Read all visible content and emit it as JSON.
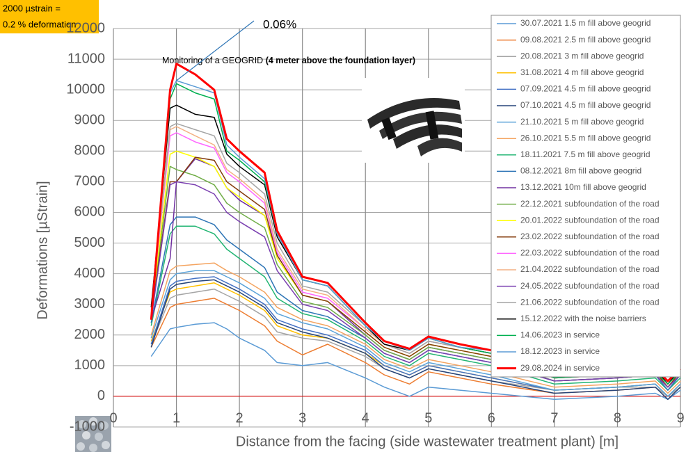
{
  "chart_data": {
    "type": "line",
    "note": [
      "2000 µstrain =",
      "0.2 % deformation"
    ],
    "title": "Monitoring of a GEOGRID",
    "title_bold": "(4 meter above the foundation layer)",
    "x_label": "Distance from the facing (side wastewater treatment plant) [m]",
    "y_label": "Deformations [µStrain]",
    "annotation": {
      "text": "0.06%",
      "x": 1,
      "y": 10300
    },
    "hline": {
      "value": 0,
      "color": "#e00000"
    },
    "xlim": [
      0,
      9
    ],
    "ylim": [
      -1000,
      12000
    ],
    "xticks": [
      0,
      1,
      2,
      3,
      4,
      5,
      6,
      7,
      8,
      9
    ],
    "yticks": [
      -1000,
      0,
      1000,
      2000,
      3000,
      4000,
      5000,
      6000,
      7000,
      8000,
      9000,
      10000,
      11000,
      12000
    ],
    "grid": true,
    "legend": "upper right",
    "x": [
      0.6,
      0.9,
      1.0,
      1.3,
      1.6,
      1.8,
      2.0,
      2.4,
      2.6,
      3.0,
      3.4,
      4.0,
      4.3,
      4.7,
      5.0,
      5.5,
      6.0,
      7.0,
      8.0,
      8.6,
      8.8,
      9.0
    ],
    "series": [
      {
        "name": "30.07.2021 1.5 m fill above geogrid",
        "color": "#5b9bd5",
        "width": 1.5,
        "values": [
          1300,
          2200,
          2250,
          2350,
          2400,
          2200,
          1900,
          1500,
          1100,
          1000,
          1100,
          600,
          300,
          0,
          300,
          200,
          100,
          -100,
          0,
          100,
          -100,
          200
        ]
      },
      {
        "name": "09.08.2021 2.5 m fill above geogrid",
        "color": "#ed7d31",
        "width": 1.5,
        "values": [
          1600,
          2900,
          3000,
          3100,
          3200,
          3000,
          2800,
          2300,
          1800,
          1350,
          1700,
          1100,
          700,
          400,
          800,
          600,
          400,
          100,
          200,
          300,
          0,
          300
        ]
      },
      {
        "name": "20.08.2021 3 m fill above geogrid",
        "color": "#a5a5a5",
        "width": 1.5,
        "values": [
          1700,
          3200,
          3300,
          3400,
          3500,
          3300,
          3100,
          2600,
          2100,
          1900,
          1800,
          1300,
          900,
          600,
          900,
          700,
          500,
          200,
          300,
          300,
          0,
          300
        ]
      },
      {
        "name": "31.08.2021 4 m fill above geogrid",
        "color": "#ffc000",
        "width": 1.5,
        "values": [
          1800,
          3400,
          3500,
          3600,
          3700,
          3500,
          3300,
          2800,
          2300,
          2000,
          1900,
          1400,
          1000,
          700,
          1000,
          800,
          600,
          200,
          300,
          400,
          0,
          400
        ]
      },
      {
        "name": "07.09.2021 4.5 m fill above geogrid",
        "color": "#4472c4",
        "width": 1.5,
        "values": [
          1700,
          3600,
          3750,
          3850,
          3900,
          3700,
          3500,
          3000,
          2500,
          2200,
          2000,
          1500,
          1000,
          700,
          1000,
          800,
          600,
          200,
          300,
          400,
          0,
          400
        ]
      },
      {
        "name": "07.10.2021 4.5 m fill above geogrid",
        "color": "#264478",
        "width": 1.5,
        "values": [
          1600,
          3500,
          3650,
          3750,
          3800,
          3600,
          3400,
          2900,
          2400,
          2100,
          1900,
          1400,
          900,
          600,
          900,
          700,
          500,
          100,
          200,
          300,
          -100,
          300
        ]
      },
      {
        "name": "21.10.2021 5 m fill above geogrid",
        "color": "#5ba3d9",
        "width": 1.5,
        "values": [
          1900,
          3800,
          4000,
          4100,
          4100,
          3900,
          3700,
          3200,
          2700,
          2400,
          2200,
          1600,
          1100,
          800,
          1100,
          900,
          700,
          200,
          300,
          400,
          0,
          400
        ]
      },
      {
        "name": "26.10.2021 5.5 m fill above geogrid",
        "color": "#f4a460",
        "width": 1.5,
        "values": [
          2000,
          4100,
          4250,
          4300,
          4350,
          4100,
          3900,
          3400,
          2900,
          2500,
          2300,
          1700,
          1200,
          900,
          1200,
          1000,
          800,
          300,
          400,
          500,
          100,
          500
        ]
      },
      {
        "name": "18.11.2021 7.5 m fill above geogrid",
        "color": "#22b573",
        "width": 1.5,
        "values": [
          2300,
          5300,
          5550,
          5550,
          5300,
          4800,
          4500,
          3900,
          3200,
          2700,
          2500,
          1800,
          1300,
          1000,
          1400,
          1200,
          1000,
          400,
          500,
          600,
          200,
          600
        ]
      },
      {
        "name": "08.12.2021 8m fill above geogrid",
        "color": "#2e75b6",
        "width": 1.5,
        "values": [
          2400,
          5600,
          5850,
          5850,
          5600,
          5100,
          4800,
          4200,
          3400,
          2800,
          2600,
          1900,
          1400,
          1100,
          1500,
          1300,
          1100,
          500,
          600,
          700,
          200,
          700
        ]
      },
      {
        "name": "13.12.2021 10m fill above geogrid",
        "color": "#7030a0",
        "width": 1.5,
        "values": [
          2500,
          4500,
          7000,
          7750,
          7500,
          6800,
          6400,
          5900,
          4600,
          3300,
          3100,
          2000,
          1500,
          1200,
          1600,
          1400,
          1200,
          500,
          600,
          700,
          300,
          700
        ]
      },
      {
        "name": "22.12.2021 subfoundation of the road",
        "color": "#70ad47",
        "width": 1.5,
        "values": [
          2600,
          7500,
          7400,
          7200,
          6900,
          6300,
          6000,
          5500,
          4300,
          3100,
          2900,
          2000,
          1500,
          1200,
          1600,
          1400,
          1200,
          500,
          600,
          700,
          300,
          700
        ]
      },
      {
        "name": "20.01.2022 subfoundation of the road",
        "color": "#ffff00",
        "width": 1.5,
        "values": [
          2700,
          7900,
          8000,
          7800,
          7500,
          6800,
          6500,
          5900,
          4500,
          3300,
          3100,
          2100,
          1600,
          1300,
          1700,
          1500,
          1300,
          600,
          700,
          800,
          300,
          800
        ]
      },
      {
        "name": "23.02.2022 subfoundation of the road",
        "color": "#843c0c",
        "width": 1.5,
        "values": [
          2600,
          7000,
          7000,
          7800,
          7700,
          7000,
          6700,
          6100,
          4600,
          3300,
          3100,
          2100,
          1600,
          1300,
          1700,
          1500,
          1300,
          600,
          700,
          800,
          300,
          800
        ]
      },
      {
        "name": "22.03.2022 subfoundation of the road",
        "color": "#ff66ff",
        "width": 1.5,
        "values": [
          2800,
          8500,
          8600,
          8300,
          8100,
          7300,
          7000,
          6300,
          4700,
          3400,
          3200,
          2200,
          1700,
          1400,
          1800,
          1600,
          1400,
          600,
          700,
          800,
          400,
          800
        ]
      },
      {
        "name": "21.04.2022 subfoundation of the road",
        "color": "#f4b183",
        "width": 1.5,
        "values": [
          2800,
          8700,
          8800,
          8500,
          8200,
          7400,
          7100,
          6400,
          4800,
          3500,
          3300,
          2200,
          1700,
          1400,
          1800,
          1600,
          1400,
          700,
          800,
          900,
          400,
          900
        ]
      },
      {
        "name": "24.05.2022 subfoundation of the road",
        "color": "#7a3fb0",
        "width": 1.5,
        "values": [
          2500,
          6900,
          7000,
          6900,
          6600,
          6000,
          5700,
          5200,
          4100,
          3000,
          2800,
          1900,
          1400,
          1100,
          1500,
          1300,
          1100,
          500,
          600,
          700,
          300,
          700
        ]
      },
      {
        "name": "21.06.2022 subfoundation of the road",
        "color": "#a5a5a5",
        "width": 1.5,
        "values": [
          2900,
          8800,
          8900,
          8700,
          8500,
          7600,
          7300,
          6600,
          5000,
          3600,
          3400,
          2300,
          1700,
          1400,
          1800,
          1600,
          1400,
          700,
          800,
          900,
          400,
          900
        ]
      },
      {
        "name": "15.12.2022 with the noise barriers",
        "color": "#000000",
        "width": 1.5,
        "values": [
          2900,
          9400,
          9500,
          9200,
          9100,
          7900,
          7500,
          6900,
          5200,
          3800,
          3600,
          2300,
          1700,
          1500,
          1900,
          1600,
          1400,
          700,
          800,
          900,
          400,
          900
        ]
      },
      {
        "name": "14.06.2023 in service",
        "color": "#00b050",
        "width": 1.5,
        "values": [
          2500,
          9700,
          10200,
          9900,
          9700,
          8000,
          7700,
          7000,
          5300,
          3800,
          3600,
          2300,
          1800,
          1500,
          1900,
          1600,
          1400,
          600,
          700,
          800,
          400,
          800
        ]
      },
      {
        "name": "18.12.2023 in service",
        "color": "#5b9bd5",
        "width": 1.5,
        "values": [
          2600,
          9900,
          10300,
          10100,
          9900,
          8200,
          7800,
          7100,
          5300,
          3800,
          3600,
          2300,
          1800,
          1500,
          1900,
          1600,
          1500,
          700,
          800,
          900,
          500,
          900
        ]
      },
      {
        "name": "29.08.2024 in service",
        "color": "#ff0000",
        "width": 3,
        "values": [
          2500,
          10000,
          10850,
          10500,
          10000,
          8400,
          8000,
          7300,
          5400,
          3900,
          3700,
          2400,
          1800,
          1550,
          1950,
          1700,
          1500,
          700,
          800,
          900,
          500,
          900
        ]
      }
    ]
  }
}
